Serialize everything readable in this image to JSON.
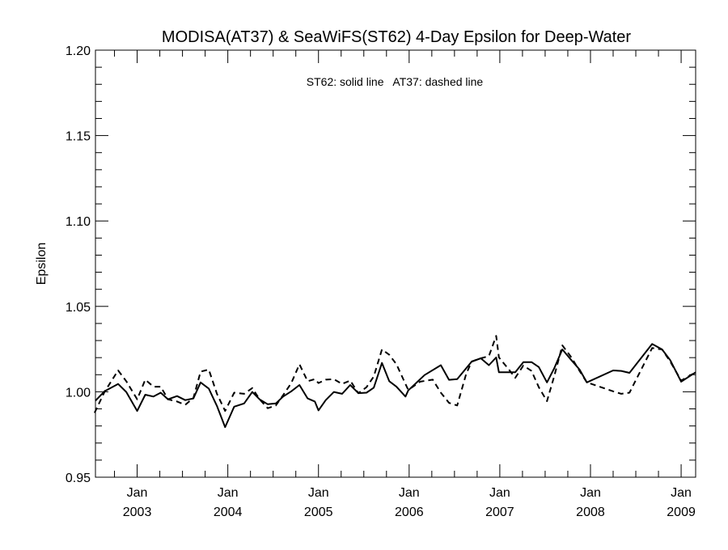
{
  "chart_data": {
    "type": "line",
    "title": "MODISA(AT37) & SeaWiFS(ST62) 4-Day Epsilon for Deep-Water",
    "annotation": "ST62: solid line   AT37: dashed line",
    "xlabel": "",
    "ylabel": "Epsilon",
    "xlim": [
      2002.54,
      2009.16
    ],
    "ylim": [
      0.95,
      1.2
    ],
    "grid": false,
    "yticks": [
      "0.95",
      "1.00",
      "1.05",
      "1.10",
      "1.15",
      "1.20"
    ],
    "xticks": [
      {
        "month": "Jan",
        "year": "2003",
        "at": 2003
      },
      {
        "month": "Jan",
        "year": "2004",
        "at": 2004
      },
      {
        "month": "Jan",
        "year": "2005",
        "at": 2005
      },
      {
        "month": "Jan",
        "year": "2006",
        "at": 2006
      },
      {
        "month": "Jan",
        "year": "2007",
        "at": 2007
      },
      {
        "month": "Jan",
        "year": "2008",
        "at": 2008
      },
      {
        "month": "Jan",
        "year": "2009",
        "at": 2009
      }
    ],
    "series": [
      {
        "name": "ST62",
        "style": "solid",
        "points": [
          [
            2002.54,
            0.9948
          ],
          [
            2002.64,
            1.0003
          ],
          [
            2002.79,
            1.0046
          ],
          [
            2002.88,
            0.9999
          ],
          [
            2003.0,
            0.9888
          ],
          [
            2003.09,
            0.9983
          ],
          [
            2003.18,
            0.9972
          ],
          [
            2003.26,
            0.9995
          ],
          [
            2003.34,
            0.9956
          ],
          [
            2003.44,
            0.9975
          ],
          [
            2003.53,
            0.9951
          ],
          [
            2003.62,
            0.9961
          ],
          [
            2003.7,
            1.0055
          ],
          [
            2003.79,
            1.0019
          ],
          [
            2003.88,
            0.9917
          ],
          [
            2003.97,
            0.9793
          ],
          [
            2004.07,
            0.9913
          ],
          [
            2004.18,
            0.9932
          ],
          [
            2004.27,
            0.9999
          ],
          [
            2004.35,
            0.9956
          ],
          [
            2004.44,
            0.9927
          ],
          [
            2004.53,
            0.9932
          ],
          [
            2004.61,
            0.9972
          ],
          [
            2004.7,
            1.0003
          ],
          [
            2004.79,
            1.004
          ],
          [
            2004.88,
            0.9961
          ],
          [
            2004.96,
            0.9943
          ],
          [
            2005.0,
            0.9891
          ],
          [
            2005.08,
            0.9951
          ],
          [
            2005.17,
            0.9999
          ],
          [
            2005.26,
            0.9988
          ],
          [
            2005.35,
            1.004
          ],
          [
            2005.44,
            0.9992
          ],
          [
            2005.53,
            0.9995
          ],
          [
            2005.61,
            1.0024
          ],
          [
            2005.7,
            1.0169
          ],
          [
            2005.78,
            1.0062
          ],
          [
            2005.86,
            1.003
          ],
          [
            2005.96,
            0.9972
          ],
          [
            2005.99,
            1.0008
          ],
          [
            2006.17,
            1.0098
          ],
          [
            2006.35,
            1.0156
          ],
          [
            2006.44,
            1.007
          ],
          [
            2006.53,
            1.0074
          ],
          [
            2006.69,
            1.0177
          ],
          [
            2006.79,
            1.0196
          ],
          [
            2006.88,
            1.0156
          ],
          [
            2006.96,
            1.0201
          ],
          [
            2006.99,
            1.0114
          ],
          [
            2007.17,
            1.0114
          ],
          [
            2007.26,
            1.0174
          ],
          [
            2007.35,
            1.0174
          ],
          [
            2007.43,
            1.0145
          ],
          [
            2007.52,
            1.0055
          ],
          [
            2007.6,
            1.0137
          ],
          [
            2007.69,
            1.0248
          ],
          [
            2007.79,
            1.0185
          ],
          [
            2007.88,
            1.013
          ],
          [
            2007.96,
            1.0055
          ],
          [
            2008.25,
            1.0125
          ],
          [
            2008.34,
            1.0122
          ],
          [
            2008.43,
            1.0111
          ],
          [
            2008.68,
            1.028
          ],
          [
            2008.79,
            1.0248
          ],
          [
            2008.88,
            1.0185
          ],
          [
            2009.0,
            1.0059
          ],
          [
            2009.16,
            1.0114
          ]
        ]
      },
      {
        "name": "AT37",
        "style": "dashed",
        "points": [
          [
            2002.53,
            0.9877
          ],
          [
            2002.64,
            0.9999
          ],
          [
            2002.79,
            1.0125
          ],
          [
            2002.88,
            1.0062
          ],
          [
            2003.0,
            0.9956
          ],
          [
            2003.09,
            1.0071
          ],
          [
            2003.18,
            1.003
          ],
          [
            2003.26,
            1.003
          ],
          [
            2003.34,
            0.9956
          ],
          [
            2003.44,
            0.9943
          ],
          [
            2003.53,
            0.9924
          ],
          [
            2003.62,
            0.9964
          ],
          [
            2003.7,
            1.0118
          ],
          [
            2003.79,
            1.013
          ],
          [
            2003.88,
            0.9988
          ],
          [
            2003.97,
            0.9888
          ],
          [
            2004.07,
            0.9995
          ],
          [
            2004.18,
            0.9988
          ],
          [
            2004.27,
            1.0022
          ],
          [
            2004.35,
            0.9956
          ],
          [
            2004.44,
            0.9904
          ],
          [
            2004.53,
            0.992
          ],
          [
            2004.61,
            0.998
          ],
          [
            2004.7,
            1.0051
          ],
          [
            2004.79,
            1.0161
          ],
          [
            2004.88,
            1.0062
          ],
          [
            2004.96,
            1.0074
          ],
          [
            2005.0,
            1.0051
          ],
          [
            2005.08,
            1.0071
          ],
          [
            2005.17,
            1.0074
          ],
          [
            2005.26,
            1.0046
          ],
          [
            2005.35,
            1.0066
          ],
          [
            2005.44,
            0.9992
          ],
          [
            2005.53,
            1.0027
          ],
          [
            2005.61,
            1.009
          ],
          [
            2005.7,
            1.0248
          ],
          [
            2005.78,
            1.0217
          ],
          [
            2005.86,
            1.0161
          ],
          [
            2005.99,
            1.0011
          ],
          [
            2006.12,
            1.0059
          ],
          [
            2006.26,
            1.0071
          ],
          [
            2006.35,
            0.9995
          ],
          [
            2006.44,
            0.9935
          ],
          [
            2006.53,
            0.992
          ],
          [
            2006.63,
            1.0106
          ],
          [
            2006.69,
            1.0177
          ],
          [
            2006.79,
            1.0196
          ],
          [
            2006.88,
            1.0209
          ],
          [
            2006.96,
            1.0327
          ],
          [
            2006.99,
            1.0201
          ],
          [
            2007.09,
            1.0137
          ],
          [
            2007.17,
            1.0082
          ],
          [
            2007.26,
            1.0154
          ],
          [
            2007.35,
            1.0122
          ],
          [
            2007.43,
            1.0027
          ],
          [
            2007.52,
            0.9945
          ],
          [
            2007.6,
            1.009
          ],
          [
            2007.69,
            1.0272
          ],
          [
            2007.79,
            1.0201
          ],
          [
            2007.88,
            1.0122
          ],
          [
            2007.96,
            1.0055
          ],
          [
            2008.25,
            1.0003
          ],
          [
            2008.34,
            0.9988
          ],
          [
            2008.43,
            0.9995
          ],
          [
            2008.68,
            1.0256
          ],
          [
            2008.79,
            1.0248
          ],
          [
            2008.88,
            1.0177
          ],
          [
            2009.0,
            1.0066
          ],
          [
            2009.16,
            1.0114
          ]
        ]
      }
    ]
  }
}
